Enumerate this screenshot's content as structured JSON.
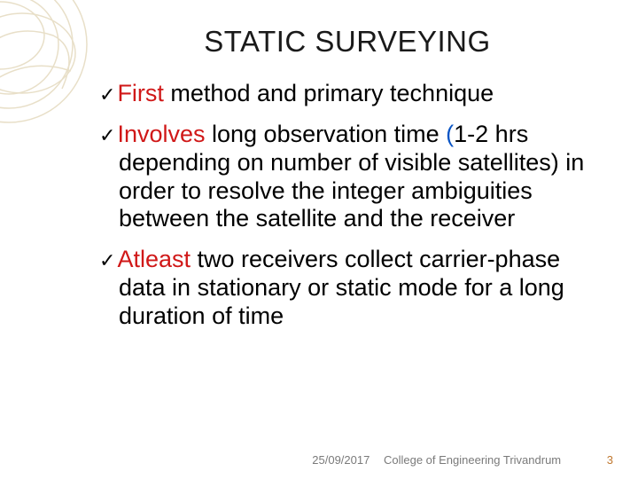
{
  "title": "STATIC SURVEYING",
  "bullets": [
    {
      "check": "✓",
      "parts": [
        {
          "text": "First",
          "cls": "highlight"
        },
        {
          "text": " method and primary technique",
          "cls": ""
        }
      ]
    },
    {
      "check": "✓",
      "parts": [
        {
          "text": "Involves",
          "cls": "highlight"
        },
        {
          "text": " long observation time ",
          "cls": ""
        },
        {
          "text": "(",
          "cls": "paren"
        },
        {
          "text": "1-2 hrs depending on number of visible satellites) in order to resolve the integer ambiguities between the satellite and the receiver",
          "cls": ""
        }
      ]
    },
    {
      "check": "✓",
      "parts": [
        {
          "text": "Atleast",
          "cls": "highlight"
        },
        {
          "text": " two receivers collect carrier-phase data in stationary or static mode for a long duration of time",
          "cls": ""
        }
      ]
    }
  ],
  "footer": {
    "date": "25/09/2017",
    "org": "College of Engineering Trivandrum",
    "page": "3"
  },
  "decoration": {
    "stroke": "#e8dfc8",
    "stroke_width": 1.5
  }
}
